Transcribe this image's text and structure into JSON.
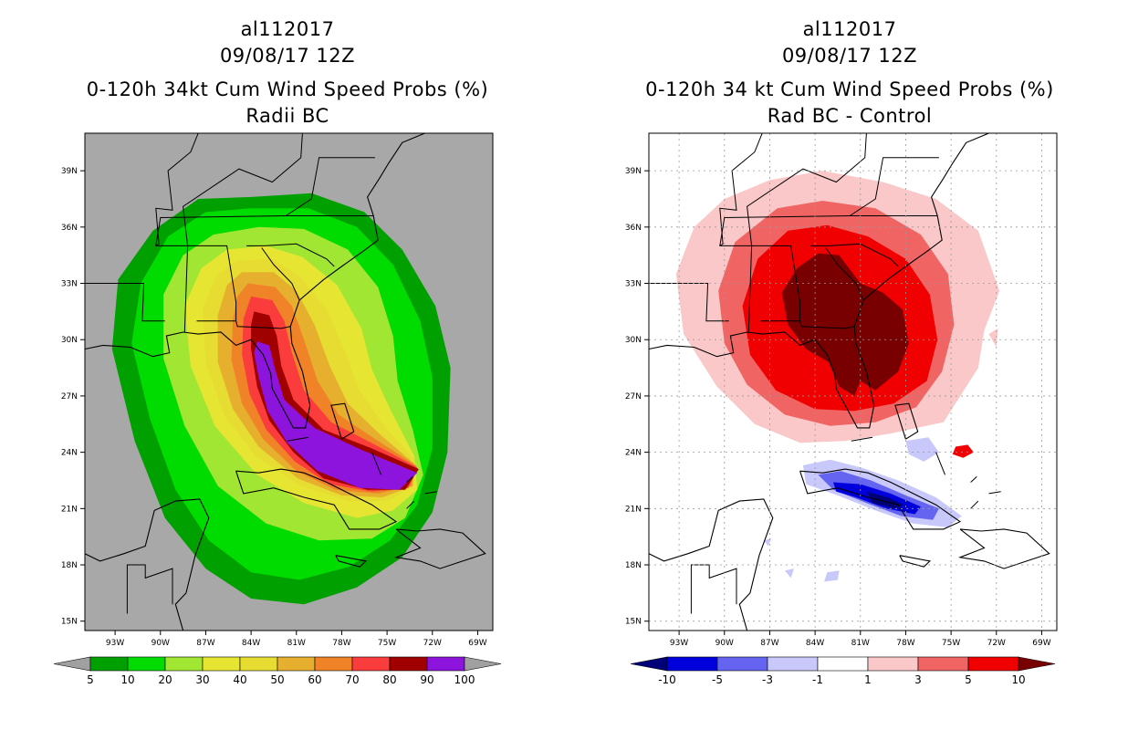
{
  "chart_data": [
    {
      "type": "heatmap",
      "storm_id": "al112017",
      "datetime": "09/08/17 12Z",
      "title": "0-120h 34kt Cum Wind Speed Probs (%)",
      "subtitle": "Radii BC",
      "x_ticks": [
        "93W",
        "90W",
        "87W",
        "84W",
        "81W",
        "78W",
        "75W",
        "72W",
        "69W"
      ],
      "x_tick_values": [
        -93,
        -90,
        -87,
        -84,
        -81,
        -78,
        -75,
        -72,
        -69
      ],
      "y_ticks": [
        "15N",
        "18N",
        "21N",
        "24N",
        "27N",
        "30N",
        "33N",
        "36N",
        "39N"
      ],
      "y_tick_values": [
        15,
        18,
        21,
        24,
        27,
        30,
        33,
        36,
        39
      ],
      "xlim": [
        -95,
        -68
      ],
      "ylim": [
        14.5,
        41
      ],
      "colorbar": {
        "labels": [
          "5",
          "10",
          "20",
          "30",
          "40",
          "50",
          "60",
          "70",
          "80",
          "90",
          "100"
        ],
        "colors": [
          "#00a000",
          "#00dc00",
          "#a0e632",
          "#e6e632",
          "#e6dc32",
          "#e6af2d",
          "#f08228",
          "#fa3c3c",
          "#a00000",
          "#8c14dc"
        ],
        "end_color_low": "#a0a0a0",
        "end_color_high": "#a0a0a0"
      },
      "background_color": "#a8a8a8"
    },
    {
      "type": "heatmap",
      "storm_id": "al112017",
      "datetime": "09/08/17 12Z",
      "title": "0-120h 34 kt Cum Wind Speed Probs (%)",
      "subtitle": "Rad BC - Control",
      "x_ticks": [
        "93W",
        "90W",
        "87W",
        "84W",
        "81W",
        "78W",
        "75W",
        "72W",
        "69W"
      ],
      "x_tick_values": [
        -93,
        -90,
        -87,
        -84,
        -81,
        -78,
        -75,
        -72,
        -69
      ],
      "y_ticks": [
        "15N",
        "18N",
        "21N",
        "24N",
        "27N",
        "30N",
        "33N",
        "36N",
        "39N"
      ],
      "y_tick_values": [
        15,
        18,
        21,
        24,
        27,
        30,
        33,
        36,
        39
      ],
      "xlim": [
        -95,
        -68
      ],
      "ylim": [
        14.5,
        41
      ],
      "colorbar": {
        "labels": [
          "-10",
          "-5",
          "-3",
          "-1",
          "1",
          "3",
          "5",
          "10"
        ],
        "colors": [
          "#0000dc",
          "#6464f0",
          "#c8c8fa",
          "#ffffff",
          "#fac8c8",
          "#f06464",
          "#f00000"
        ],
        "end_color_low": "#000078",
        "end_color_high": "#780000"
      },
      "background_color": "#ffffff"
    }
  ]
}
